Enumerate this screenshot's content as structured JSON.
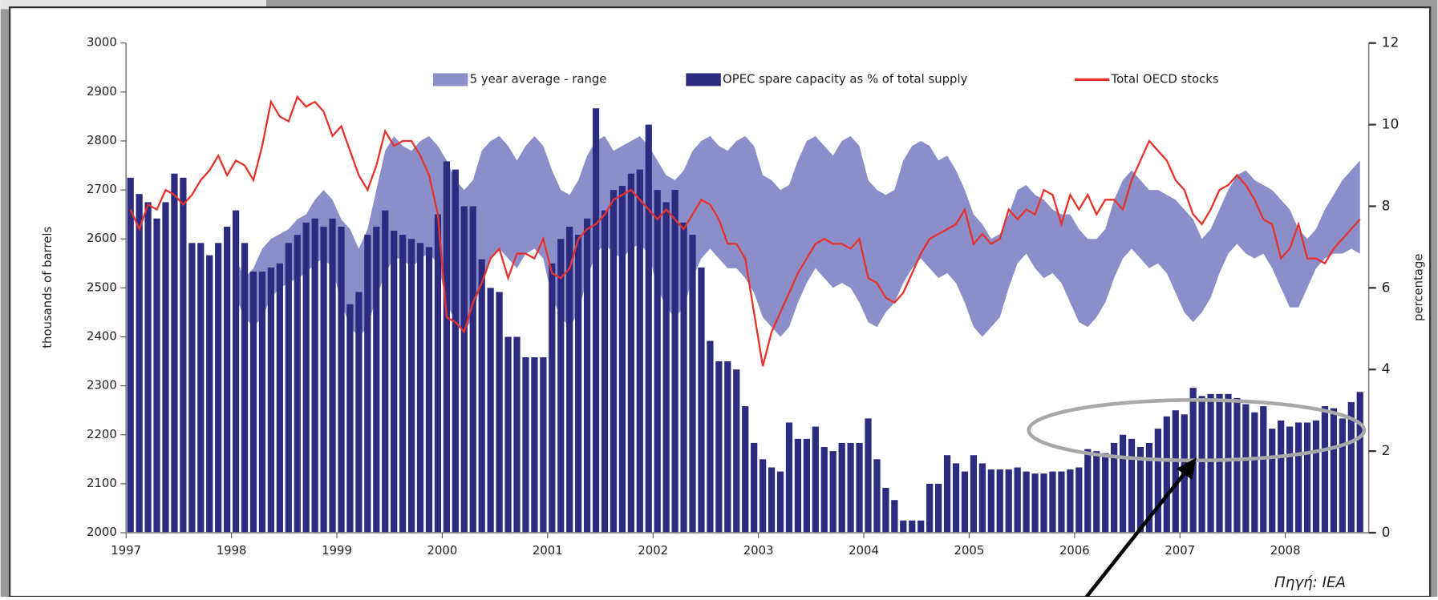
{
  "chart_data": {
    "type": "combo",
    "annotation": "Πηγή: IEA",
    "ylabel": "thousands of barrels",
    "y2label": "percentage",
    "ylim": [
      2000,
      3000
    ],
    "yticks": [
      2000,
      2100,
      2200,
      2300,
      2400,
      2500,
      2600,
      2700,
      2800,
      2900,
      3000
    ],
    "y2lim": [
      0,
      12
    ],
    "y2ticks": [
      0,
      2,
      4,
      6,
      8,
      10,
      12
    ],
    "categories": [
      "1997",
      null,
      null,
      null,
      null,
      null,
      null,
      null,
      null,
      null,
      null,
      null,
      "1998",
      null,
      null,
      null,
      null,
      null,
      null,
      null,
      null,
      null,
      null,
      null,
      "1999",
      null,
      null,
      null,
      null,
      null,
      null,
      null,
      null,
      null,
      null,
      null,
      "2000",
      null,
      null,
      null,
      null,
      null,
      null,
      null,
      null,
      null,
      null,
      null,
      "2001",
      null,
      null,
      null,
      null,
      null,
      null,
      null,
      null,
      null,
      null,
      null,
      "2002",
      null,
      null,
      null,
      null,
      null,
      null,
      null,
      null,
      null,
      null,
      null,
      "2003",
      null,
      null,
      null,
      null,
      null,
      null,
      null,
      null,
      null,
      null,
      null,
      "2004",
      null,
      null,
      null,
      null,
      null,
      null,
      null,
      null,
      null,
      null,
      null,
      "2005",
      null,
      null,
      null,
      null,
      null,
      null,
      null,
      null,
      null,
      null,
      null,
      "2006",
      null,
      null,
      null,
      null,
      null,
      null,
      null,
      null,
      null,
      null,
      null,
      "2007",
      null,
      null,
      null,
      null,
      null,
      null,
      null,
      null,
      null,
      null,
      null,
      "2008",
      null,
      null,
      null,
      null,
      null,
      null,
      null,
      null
    ],
    "series": [
      {
        "name": "5 year average - range",
        "type": "band",
        "color": "#8b8ec8",
        "values": [
          null,
          null,
          null,
          null,
          null,
          null,
          null,
          null,
          null,
          null,
          null,
          null,
          2560,
          2520,
          2540,
          2580,
          2600,
          2610,
          2620,
          2640,
          2650,
          2680,
          2700,
          2680,
          2640,
          2620,
          2580,
          2620,
          2700,
          2780,
          2810,
          2790,
          2780,
          2800,
          2810,
          2790,
          2760,
          2720,
          2700,
          2720,
          2780,
          2800,
          2810,
          2790,
          2760,
          2790,
          2810,
          2790,
          2740,
          2700,
          2690,
          2720,
          2770,
          2800,
          2810,
          2780,
          2790,
          2800,
          2810,
          2790,
          2760,
          2730,
          2720,
          2740,
          2780,
          2800,
          2810,
          2790,
          2780,
          2800,
          2810,
          2790,
          2730,
          2720,
          2700,
          2710,
          2760,
          2800,
          2810,
          2790,
          2770,
          2800,
          2810,
          2790,
          2720,
          2700,
          2690,
          2700,
          2760,
          2790,
          2800,
          2790,
          2760,
          2770,
          2740,
          2700,
          2650,
          2630,
          2600,
          2610,
          2650,
          2700,
          2710,
          2690,
          2680,
          2660,
          2650,
          2650,
          2620,
          2600,
          2600,
          2620,
          2680,
          2720,
          2740,
          2720,
          2700,
          2700,
          2690,
          2680,
          2660,
          2640,
          2600,
          2620,
          2660,
          2700,
          2730,
          2740,
          2720,
          2710,
          2700,
          2680,
          2660,
          2620,
          2600,
          2620,
          2660,
          2690,
          2720,
          2740,
          2760
        ],
        "values_low": [
          null,
          null,
          null,
          null,
          null,
          null,
          null,
          null,
          null,
          null,
          null,
          null,
          2480,
          2440,
          2420,
          2440,
          2480,
          2500,
          2510,
          2520,
          2530,
          2550,
          2560,
          2540,
          2470,
          2420,
          2400,
          2420,
          2480,
          2530,
          2560,
          2560,
          2540,
          2560,
          2570,
          2550,
          2470,
          2430,
          2410,
          2440,
          2520,
          2560,
          2580,
          2560,
          2540,
          2570,
          2580,
          2560,
          2480,
          2440,
          2420,
          2450,
          2520,
          2570,
          2590,
          2570,
          2560,
          2580,
          2590,
          2570,
          2500,
          2460,
          2440,
          2460,
          2520,
          2560,
          2580,
          2560,
          2540,
          2540,
          2520,
          2490,
          2440,
          2420,
          2400,
          2420,
          2470,
          2510,
          2540,
          2520,
          2500,
          2510,
          2500,
          2470,
          2430,
          2420,
          2450,
          2470,
          2510,
          2540,
          2560,
          2540,
          2520,
          2530,
          2510,
          2470,
          2420,
          2400,
          2420,
          2440,
          2500,
          2550,
          2570,
          2540,
          2520,
          2530,
          2510,
          2470,
          2430,
          2420,
          2440,
          2470,
          2520,
          2560,
          2580,
          2560,
          2540,
          2550,
          2530,
          2490,
          2450,
          2430,
          2450,
          2480,
          2530,
          2570,
          2590,
          2570,
          2560,
          2570,
          2540,
          2500,
          2460,
          2460,
          2500,
          2540,
          2560,
          2570,
          2570,
          2580,
          2570
        ]
      },
      {
        "name": "OPEC spare capacity as % of total supply",
        "type": "bar",
        "axis": "y2",
        "color": "#2c2b80",
        "values": [
          8.7,
          8.3,
          8.1,
          7.7,
          8.1,
          8.8,
          8.7,
          7.1,
          7.1,
          6.8,
          7.1,
          7.5,
          7.9,
          7.1,
          6.4,
          6.4,
          6.5,
          6.6,
          7.1,
          7.3,
          7.6,
          7.7,
          7.5,
          7.7,
          7.5,
          5.6,
          5.9,
          7.3,
          7.5,
          7.9,
          7.4,
          7.3,
          7.2,
          7.1,
          7.0,
          7.8,
          9.1,
          8.9,
          8.0,
          8.0,
          6.7,
          6.0,
          5.9,
          4.8,
          4.8,
          4.3,
          4.3,
          4.3,
          6.6,
          7.2,
          7.5,
          7.3,
          7.7,
          10.4,
          7.9,
          8.4,
          8.5,
          8.8,
          8.9,
          10.0,
          8.4,
          8.1,
          8.4,
          7.6,
          7.3,
          6.5,
          4.7,
          4.2,
          4.2,
          4.0,
          3.1,
          2.2,
          1.8,
          1.6,
          1.5,
          2.7,
          2.3,
          2.3,
          2.6,
          2.1,
          2.0,
          2.2,
          2.2,
          2.2,
          2.8,
          1.8,
          1.1,
          0.8,
          0.3,
          0.3,
          0.3,
          1.2,
          1.2,
          1.9,
          1.7,
          1.5,
          1.9,
          1.7,
          1.55,
          1.55,
          1.55,
          1.6,
          1.5,
          1.45,
          1.45,
          1.5,
          1.5,
          1.55,
          1.6,
          2.05,
          2.0,
          1.95,
          2.2,
          2.4,
          2.3,
          2.1,
          2.2,
          2.55,
          2.85,
          3.0,
          2.9,
          3.55,
          3.35,
          3.4,
          3.4,
          3.4,
          3.3,
          3.15,
          2.95,
          3.1,
          2.55,
          2.75,
          2.6,
          2.7,
          2.7,
          2.75,
          3.1,
          3.05,
          2.8,
          3.2,
          3.45
        ]
      },
      {
        "name": "Total OECD stocks",
        "type": "line",
        "color": "#e8312b",
        "values": [
          2660,
          2620,
          2670,
          2660,
          2700,
          2690,
          2670,
          2690,
          2720,
          2740,
          2770,
          2730,
          2760,
          2750,
          2720,
          2790,
          2880,
          2850,
          2840,
          2890,
          2870,
          2880,
          2860,
          2810,
          2830,
          2780,
          2730,
          2700,
          2750,
          2820,
          2790,
          2800,
          2800,
          2770,
          2730,
          2650,
          2440,
          2430,
          2410,
          2470,
          2510,
          2560,
          2580,
          2520,
          2570,
          2570,
          2560,
          2600,
          2530,
          2520,
          2540,
          2600,
          2620,
          2630,
          2650,
          2680,
          2690,
          2700,
          2680,
          2660,
          2640,
          2660,
          2640,
          2620,
          2650,
          2680,
          2670,
          2640,
          2590,
          2590,
          2560,
          2450,
          2340,
          2410,
          2450,
          2490,
          2530,
          2560,
          2590,
          2600,
          2590,
          2590,
          2580,
          2600,
          2520,
          2510,
          2480,
          2470,
          2490,
          2530,
          2570,
          2600,
          2610,
          2620,
          2630,
          2660,
          2590,
          2610,
          2590,
          2600,
          2660,
          2640,
          2660,
          2650,
          2700,
          2690,
          2630,
          2690,
          2660,
          2690,
          2650,
          2680,
          2680,
          2660,
          2720,
          2760,
          2800,
          2780,
          2760,
          2720,
          2700,
          2650,
          2630,
          2660,
          2700,
          2710,
          2730,
          2710,
          2680,
          2640,
          2630,
          2560,
          2580,
          2630,
          2560,
          2560,
          2550,
          2580,
          2600,
          2620,
          2640
        ]
      }
    ]
  }
}
